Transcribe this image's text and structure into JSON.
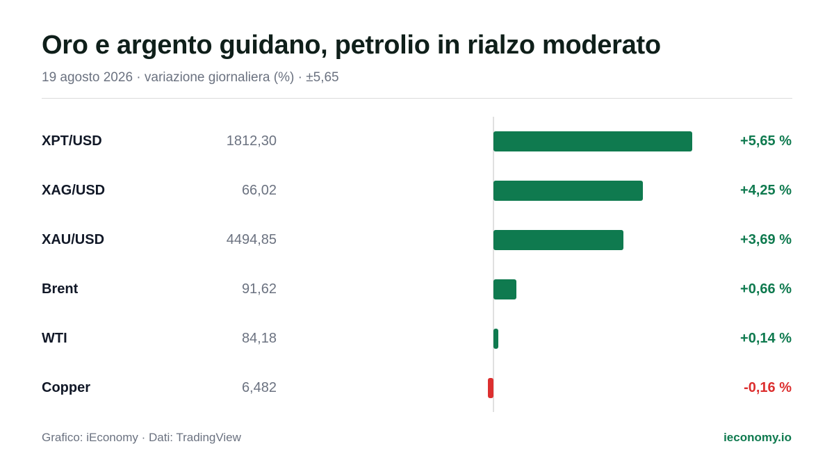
{
  "header": {
    "title": "Oro e argento guidano, petrolio in rialzo moderato",
    "subtitle": "19 agosto 2026 · variazione giornaliera (%) · ±5,65"
  },
  "footer": {
    "source": "Grafico: iEconomy · Dati: TradingView",
    "brand": "ieconomy.io"
  },
  "colors": {
    "positive": "#0f7a4f",
    "negative": "#dc2f2f"
  },
  "chart_data": {
    "type": "bar",
    "orientation": "horizontal",
    "title": "Oro e argento guidano, petrolio in rialzo moderato",
    "subtitle": "19 agosto 2026 · variazione giornaliera (%) · ±5,65",
    "xlim": [
      -5.65,
      5.65
    ],
    "grid": false,
    "categories": [
      "XPT/USD",
      "XAG/USD",
      "XAU/USD",
      "Brent",
      "WTI",
      "Copper"
    ],
    "prices": [
      "1812,30",
      "66,02",
      "4494,85",
      "91,62",
      "84,18",
      "6,482"
    ],
    "values": [
      5.65,
      4.25,
      3.69,
      0.66,
      0.14,
      -0.16
    ],
    "value_labels": [
      "+5,65 %",
      "+4,25 %",
      "+3,69 %",
      "+0,66 %",
      "+0,14 %",
      "-0,16 %"
    ]
  }
}
